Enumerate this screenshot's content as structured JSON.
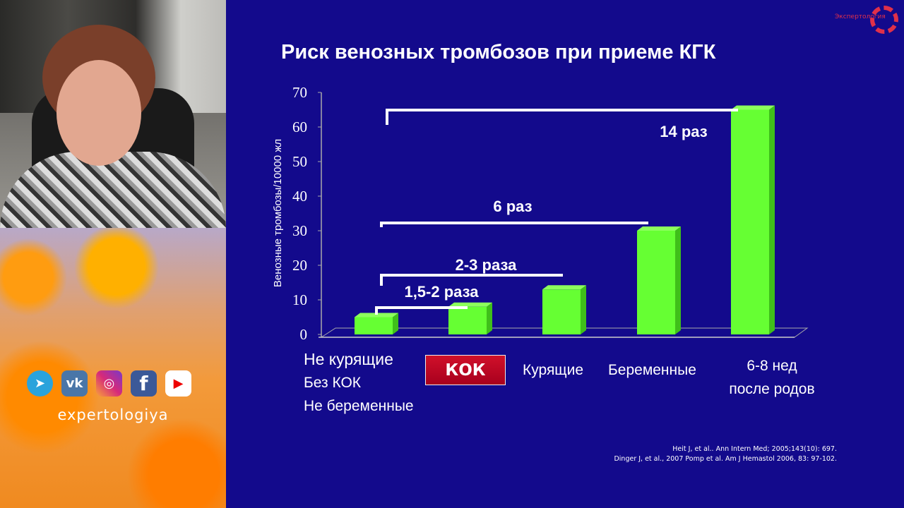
{
  "left_panel": {
    "brand": "expertologiya",
    "social_icons": [
      "telegram-icon",
      "vk-icon",
      "instagram-icon",
      "facebook-icon",
      "youtube-icon"
    ]
  },
  "slide": {
    "title": "Риск венозных тромбозов при приеме КГК",
    "logo_text": "Экспертология",
    "references": [
      "Heit J, et al.. Ann Intern Med; 2005;143(10): 697.",
      "Dinger J, et al.,  2007  Pomp et al. Am J Hemastol 2006, 83: 97-102."
    ],
    "categories": [
      [
        "Не курящие",
        "Без КОК",
        "Не беременные"
      ],
      [
        "КОК"
      ],
      [
        "Курящие"
      ],
      [
        "Беременные"
      ],
      [
        "6-8 нед",
        "после родов"
      ]
    ]
  },
  "chart_data": {
    "type": "bar",
    "categories": [
      "Не курящие / Без КОК / Не беременные",
      "КОК",
      "Курящие",
      "Беременные",
      "6-8 нед после родов"
    ],
    "values": [
      5,
      8,
      13,
      30,
      65
    ],
    "ylabel": "Венозные тромбозы/10000  жл",
    "ylim": [
      0,
      70
    ],
    "yticks": [
      "0",
      "10",
      "20",
      "30",
      "40",
      "50",
      "60",
      "70"
    ],
    "bar_color": "#66ff33",
    "annotations": [
      {
        "text": "1,5-2 раза",
        "from": 0,
        "to": 1
      },
      {
        "text": "2-3 раза",
        "from": 0,
        "to": 2
      },
      {
        "text": "6 раз",
        "from": 0,
        "to": 3
      },
      {
        "text": "14 раз",
        "from": 0,
        "to": 4
      }
    ]
  }
}
